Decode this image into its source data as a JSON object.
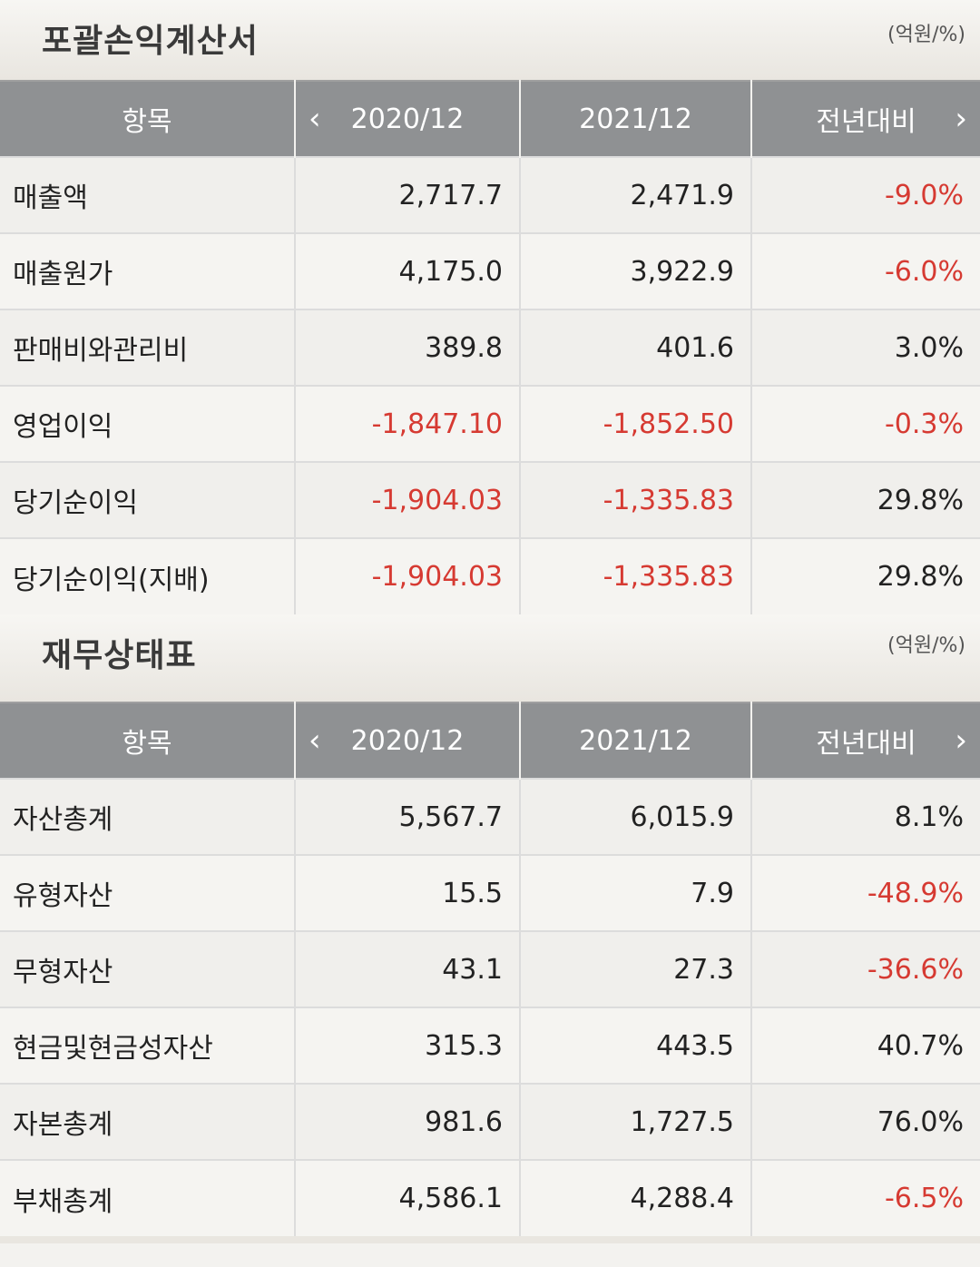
{
  "income": {
    "title": "포괄손익계산서",
    "unit": "(억원/%)",
    "headers": {
      "item": "항목",
      "col1": "2020/12",
      "col2": "2021/12",
      "col3": "전년대비"
    },
    "rows": [
      {
        "label": "매출액",
        "v1": "2,717.7",
        "v2": "2,471.9",
        "v3": "-9.0%"
      },
      {
        "label": "매출원가",
        "v1": "4,175.0",
        "v2": "3,922.9",
        "v3": "-6.0%"
      },
      {
        "label": "판매비와관리비",
        "v1": "389.8",
        "v2": "401.6",
        "v3": "3.0%"
      },
      {
        "label": "영업이익",
        "v1": "-1,847.10",
        "v2": "-1,852.50",
        "v3": "-0.3%"
      },
      {
        "label": "당기순이익",
        "v1": "-1,904.03",
        "v2": "-1,335.83",
        "v3": "29.8%"
      },
      {
        "label": "당기순이익(지배)",
        "v1": "-1,904.03",
        "v2": "-1,335.83",
        "v3": "29.8%"
      }
    ]
  },
  "balance": {
    "title": "재무상태표",
    "unit": "(억원/%)",
    "headers": {
      "item": "항목",
      "col1": "2020/12",
      "col2": "2021/12",
      "col3": "전년대비"
    },
    "rows": [
      {
        "label": "자산총계",
        "v1": "5,567.7",
        "v2": "6,015.9",
        "v3": "8.1%"
      },
      {
        "label": "유형자산",
        "v1": "15.5",
        "v2": "7.9",
        "v3": "-48.9%"
      },
      {
        "label": "무형자산",
        "v1": "43.1",
        "v2": "27.3",
        "v3": "-36.6%"
      },
      {
        "label": "현금및현금성자산",
        "v1": "315.3",
        "v2": "443.5",
        "v3": "40.7%"
      },
      {
        "label": "자본총계",
        "v1": "981.6",
        "v2": "1,727.5",
        "v3": "76.0%"
      },
      {
        "label": "부채총계",
        "v1": "4,586.1",
        "v2": "4,288.4",
        "v3": "-6.5%"
      }
    ]
  },
  "colors": {
    "negative": "#d63a32",
    "header_bg": "#8f9193",
    "text": "#222222"
  },
  "icons": {
    "prev": "chevron-left-icon",
    "next": "chevron-right-icon"
  }
}
